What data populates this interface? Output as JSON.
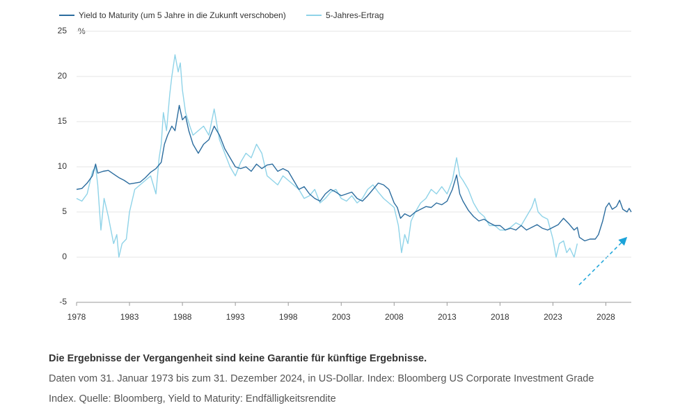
{
  "chart_data": {
    "type": "line",
    "y_unit": "%",
    "xlim": [
      1978,
      2030.4
    ],
    "xticks": [
      1978,
      1983,
      1988,
      1993,
      1998,
      2003,
      2008,
      2013,
      2018,
      2023,
      2028
    ],
    "ylim": [
      -5,
      25
    ],
    "yticks": [
      -5,
      0,
      5,
      10,
      15,
      20,
      25
    ],
    "grid": true,
    "series": [
      {
        "name": "Yield to Maturity (um 5 Jahre in die Zukunft verschoben)",
        "color": "#2b6c9e",
        "x": [
          1978.0,
          1978.5,
          1979.0,
          1979.5,
          1979.8,
          1980.0,
          1980.5,
          1981.0,
          1981.5,
          1982.0,
          1982.5,
          1983.0,
          1983.5,
          1984.0,
          1984.5,
          1985.0,
          1985.5,
          1986.0,
          1986.3,
          1986.6,
          1987.0,
          1987.3,
          1987.7,
          1988.0,
          1988.3,
          1988.6,
          1989.0,
          1989.5,
          1990.0,
          1990.5,
          1991.0,
          1991.5,
          1992.0,
          1992.5,
          1993.0,
          1993.5,
          1994.0,
          1994.5,
          1995.0,
          1995.5,
          1996.0,
          1996.5,
          1997.0,
          1997.5,
          1998.0,
          1998.5,
          1999.0,
          1999.5,
          2000.0,
          2000.5,
          2001.0,
          2001.5,
          2002.0,
          2002.5,
          2003.0,
          2003.5,
          2004.0,
          2004.5,
          2005.0,
          2005.5,
          2006.0,
          2006.5,
          2007.0,
          2007.5,
          2008.0,
          2008.3,
          2008.6,
          2009.0,
          2009.5,
          2010.0,
          2010.5,
          2011.0,
          2011.5,
          2012.0,
          2012.5,
          2013.0,
          2013.5,
          2013.9,
          2014.2,
          2014.5,
          2015.0,
          2015.5,
          2016.0,
          2016.5,
          2017.0,
          2017.5,
          2018.0,
          2018.5,
          2019.0,
          2019.5,
          2020.0,
          2020.5,
          2021.0,
          2021.5,
          2022.0,
          2022.5,
          2023.0,
          2023.5,
          2024.0,
          2024.5,
          2025.0,
          2025.3,
          2025.5,
          2026.0,
          2026.5,
          2027.0,
          2027.3,
          2027.7,
          2028.0,
          2028.3,
          2028.6,
          2029.0,
          2029.3,
          2029.6,
          2030.0,
          2030.2,
          2030.4
        ],
        "values": [
          7.5,
          7.6,
          8.2,
          9.0,
          10.3,
          9.3,
          9.5,
          9.6,
          9.2,
          8.8,
          8.5,
          8.1,
          8.2,
          8.3,
          8.8,
          9.4,
          9.8,
          10.5,
          12.5,
          13.5,
          14.5,
          14.0,
          16.8,
          15.2,
          15.6,
          14.0,
          12.5,
          11.5,
          12.5,
          13.0,
          14.5,
          13.5,
          12.0,
          11.0,
          10.0,
          9.8,
          10.0,
          9.5,
          10.3,
          9.8,
          10.2,
          10.3,
          9.5,
          9.8,
          9.5,
          8.5,
          7.5,
          7.8,
          7.0,
          6.5,
          6.2,
          7.0,
          7.5,
          7.2,
          6.8,
          7.0,
          7.2,
          6.5,
          6.2,
          6.8,
          7.5,
          8.2,
          8.0,
          7.5,
          6.0,
          5.5,
          4.3,
          4.8,
          4.5,
          5.0,
          5.3,
          5.6,
          5.5,
          6.0,
          5.8,
          6.2,
          7.5,
          9.1,
          7.0,
          6.2,
          5.2,
          4.5,
          4.0,
          4.2,
          3.8,
          3.5,
          3.5,
          3.0,
          3.2,
          3.0,
          3.5,
          3.0,
          3.3,
          3.6,
          3.2,
          3.0,
          3.3,
          3.6,
          4.3,
          3.7,
          3.0,
          3.3,
          2.2,
          1.8,
          2.0,
          2.0,
          2.5,
          4.0,
          5.5,
          6.0,
          5.3,
          5.6,
          6.3,
          5.3,
          5.0,
          5.4,
          5.0
        ]
      },
      {
        "name": "5-Jahres-Ertrag",
        "color": "#8fd3e8",
        "x": [
          1978.0,
          1978.5,
          1979.0,
          1979.5,
          1979.8,
          1980.0,
          1980.3,
          1980.6,
          1981.0,
          1981.5,
          1981.8,
          1982.0,
          1982.3,
          1982.7,
          1983.0,
          1983.5,
          1984.0,
          1984.5,
          1985.0,
          1985.5,
          1985.8,
          1986.0,
          1986.2,
          1986.5,
          1986.8,
          1987.0,
          1987.3,
          1987.6,
          1987.8,
          1988.0,
          1988.3,
          1988.7,
          1989.0,
          1989.5,
          1990.0,
          1990.5,
          1991.0,
          1991.5,
          1992.0,
          1992.5,
          1993.0,
          1993.5,
          1994.0,
          1994.5,
          1995.0,
          1995.5,
          1996.0,
          1996.5,
          1997.0,
          1997.5,
          1998.0,
          1998.5,
          1999.0,
          1999.5,
          2000.0,
          2000.5,
          2001.0,
          2001.5,
          2002.0,
          2002.5,
          2003.0,
          2003.5,
          2004.0,
          2004.5,
          2005.0,
          2005.5,
          2006.0,
          2006.5,
          2007.0,
          2007.5,
          2008.0,
          2008.4,
          2008.7,
          2009.0,
          2009.3,
          2009.6,
          2010.0,
          2010.5,
          2011.0,
          2011.5,
          2012.0,
          2012.5,
          2013.0,
          2013.5,
          2013.9,
          2014.2,
          2014.5,
          2015.0,
          2015.5,
          2016.0,
          2016.5,
          2017.0,
          2017.5,
          2018.0,
          2018.5,
          2019.0,
          2019.5,
          2020.0,
          2020.5,
          2021.0,
          2021.3,
          2021.6,
          2022.0,
          2022.5,
          2023.0,
          2023.3,
          2023.6,
          2024.0,
          2024.3,
          2024.6,
          2025.0,
          2025.3
        ],
        "values": [
          6.5,
          6.2,
          7.0,
          9.5,
          10.0,
          8.0,
          3.0,
          6.5,
          4.5,
          1.5,
          2.5,
          0.0,
          1.5,
          2.0,
          5.0,
          7.5,
          8.0,
          8.5,
          9.0,
          7.0,
          11.0,
          12.5,
          16.0,
          14.0,
          18.0,
          20.0,
          22.4,
          20.5,
          21.5,
          18.5,
          16.0,
          14.5,
          13.5,
          14.0,
          14.5,
          13.5,
          16.4,
          13.0,
          11.5,
          10.0,
          9.0,
          10.5,
          11.5,
          11.0,
          12.5,
          11.5,
          9.0,
          8.5,
          8.0,
          9.0,
          8.5,
          8.0,
          7.5,
          6.5,
          6.8,
          7.5,
          6.0,
          6.5,
          7.2,
          7.5,
          6.5,
          6.2,
          6.8,
          6.0,
          6.5,
          7.5,
          8.0,
          7.2,
          6.5,
          6.0,
          5.5,
          3.5,
          0.5,
          2.5,
          1.5,
          4.0,
          5.0,
          6.0,
          6.5,
          7.5,
          7.0,
          7.8,
          7.0,
          8.5,
          11.0,
          9.0,
          8.5,
          7.5,
          6.0,
          5.0,
          4.5,
          3.5,
          3.5,
          3.0,
          3.0,
          3.3,
          3.8,
          3.5,
          4.5,
          5.5,
          6.5,
          5.0,
          4.5,
          4.2,
          2.0,
          0.0,
          1.5,
          1.8,
          0.5,
          1.0,
          0.0,
          1.5
        ]
      }
    ]
  },
  "notes": {
    "disclaimer": "Die Ergebnisse der Vergangenheit sind keine Garantie für künftige Ergebnisse.",
    "source_lines": [
      "Daten vom 31. Januar 1973 bis zum 31. Dezember 2024, in US-Dollar. Index: Bloomberg US Corporate Investment Grade",
      "Index. Quelle: Bloomberg, Yield to Maturity: Endfälligkeitsrendite"
    ]
  }
}
